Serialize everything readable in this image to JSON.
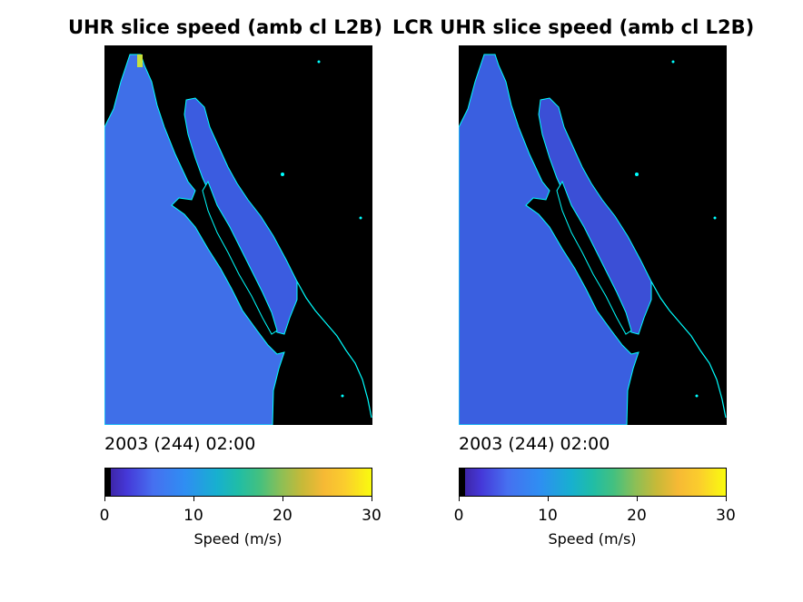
{
  "panels": [
    {
      "title": "UHR slice speed (amb cl L2B)",
      "timestamp": "2003 (244) 02:00",
      "colorbar": {
        "ticks": [
          "0",
          "10",
          "20",
          "30"
        ],
        "label": "Speed (m/s)",
        "min": 0,
        "max": 30,
        "colormap": "parula"
      }
    },
    {
      "title": "LCR UHR slice speed (amb cl L2B)",
      "timestamp": "2003 (244) 02:00",
      "colorbar": {
        "ticks": [
          "0",
          "10",
          "20",
          "30"
        ],
        "label": "Speed (m/s)",
        "min": 0,
        "max": 30,
        "colormap": "parula"
      }
    }
  ],
  "colors": {
    "land": "#000000",
    "coastline": "#00ffff",
    "ocean_primary": "#3f6fe8",
    "ocean_secondary": "#3a5fe0",
    "gulf": "#3b5ce0"
  }
}
